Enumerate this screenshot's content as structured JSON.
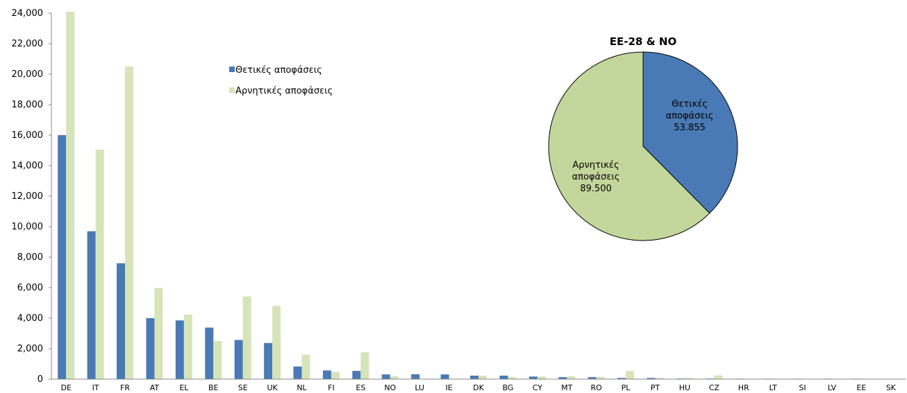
{
  "chart_data": [
    {
      "type": "bar",
      "categories": [
        "DE",
        "IT",
        "FR",
        "AT",
        "EL",
        "BE",
        "SE",
        "UK",
        "NL",
        "FI",
        "ES",
        "NO",
        "LU",
        "IE",
        "DK",
        "BG",
        "CY",
        "MT",
        "RO",
        "PL",
        "PT",
        "HU",
        "CZ",
        "HR",
        "LT",
        "SI",
        "LV",
        "EE",
        "SK"
      ],
      "series": [
        {
          "name": "Θετικές αποφάσεις",
          "color": "#4a7ab5",
          "values": [
            16000,
            9700,
            7600,
            4000,
            3850,
            3380,
            2570,
            2370,
            830,
            570,
            540,
            310,
            320,
            310,
            230,
            230,
            170,
            130,
            130,
            80,
            80,
            40,
            40,
            30,
            30,
            30,
            30,
            30,
            20
          ]
        },
        {
          "name": "Αρνητικές αποφάσεις",
          "color": "#d6e4b9",
          "values": [
            24100,
            15050,
            20500,
            5980,
            4230,
            2500,
            5420,
            4800,
            1600,
            480,
            1760,
            180,
            20,
            20,
            220,
            150,
            170,
            190,
            150,
            530,
            90,
            80,
            250,
            20,
            20,
            20,
            20,
            20,
            5
          ]
        }
      ],
      "ylim": [
        0,
        24000
      ],
      "yticks": [
        "0",
        "2,000",
        "4,000",
        "6,000",
        "8,000",
        "10,000",
        "12,000",
        "14,000",
        "16,000",
        "18,000",
        "20,000",
        "22,000",
        "24,000"
      ],
      "legend_position": "top-center"
    },
    {
      "type": "pie",
      "title": "ΕΕ-28 & ΝΟ",
      "slices": [
        {
          "label_line1": "Θετικές",
          "label_line2": "αποφάσεις",
          "value_text": "53.855",
          "value": 53855,
          "color": "#4a7ab5"
        },
        {
          "label_line1": "Αρνητικές",
          "label_line2": "αποφάσεις",
          "value_text": "89.500",
          "value": 89500,
          "color": "#c3d69b"
        }
      ]
    }
  ]
}
